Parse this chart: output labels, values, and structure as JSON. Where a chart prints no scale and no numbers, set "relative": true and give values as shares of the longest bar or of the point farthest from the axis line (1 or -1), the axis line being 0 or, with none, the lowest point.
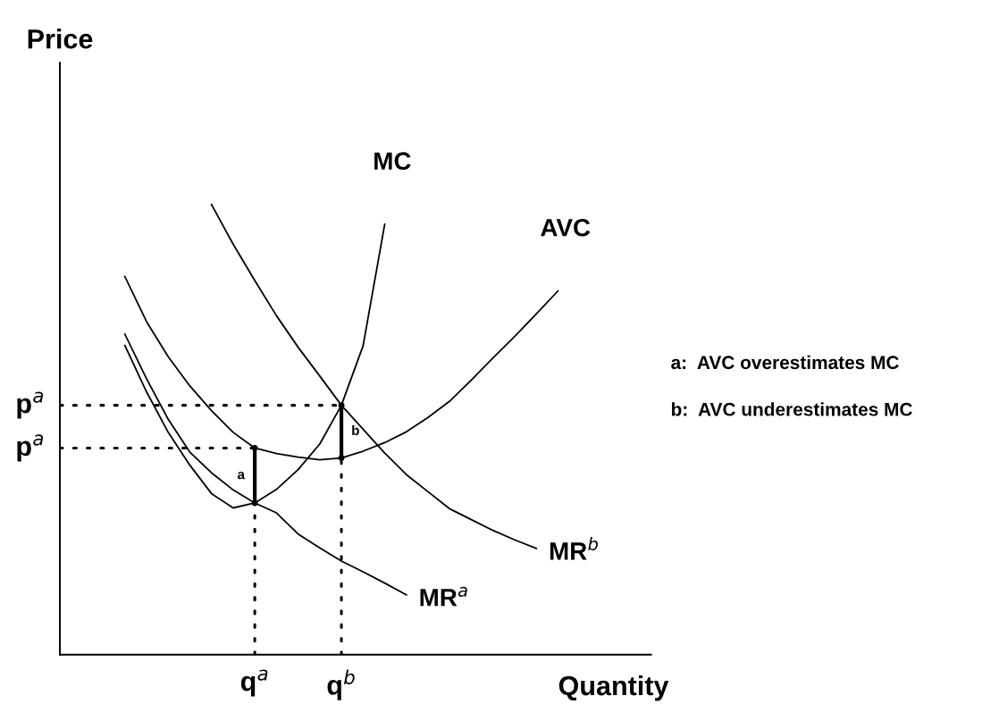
{
  "chart_data": {
    "type": "line",
    "relative": true,
    "xlabel": "Quantity",
    "marker": "none",
    "categories": [
      null,
      null,
      null,
      null,
      null,
      null,
      null,
      null,
      null,
      "q$^{a}$",
      null,
      null,
      null,
      "q$^{b}$",
      null,
      null,
      null,
      null,
      null,
      null,
      null,
      null,
      null,
      null,
      null,
      null,
      null,
      null
    ],
    "series": [
      {
        "name": "MR$^{b}$",
        "color": "#000000",
        "line_style": "solid",
        "values": [
          null,
          null,
          null,
          null,
          null,
          null,
          null,
          1.0,
          0.912,
          0.831,
          0.753,
          0.683,
          0.619,
          0.554,
          0.501,
          0.448,
          0.4,
          0.362,
          0.324,
          0.3,
          0.276,
          0.255,
          0.236,
          null,
          null,
          null,
          null,
          null
        ]
      },
      {
        "name": "MC",
        "color": "#000000",
        "line_style": "solid",
        "values": [
          null,
          null,
          null,
          0.687,
          0.584,
          0.494,
          0.421,
          0.358,
          0.326,
          0.337,
          0.367,
          0.411,
          0.468,
          0.554,
          0.686,
          0.956,
          null,
          null,
          null,
          null,
          null,
          null,
          null,
          null,
          null,
          null,
          null,
          null
        ]
      },
      {
        "name": "AVC",
        "color": "#000000",
        "line_style": "solid",
        "values": [
          null,
          null,
          null,
          0.84,
          0.74,
          0.662,
          0.597,
          0.542,
          0.494,
          0.459,
          0.447,
          0.439,
          0.433,
          0.437,
          0.452,
          0.471,
          0.495,
          0.527,
          0.563,
          0.61,
          0.659,
          0.707,
          0.757,
          0.808,
          null,
          null,
          null,
          null
        ]
      },
      {
        "name": "MR$^{a}$",
        "color": "#000000",
        "line_style": "solid",
        "values": [
          null,
          null,
          null,
          0.712,
          0.613,
          0.523,
          0.45,
          0.404,
          0.366,
          0.337,
          0.315,
          0.268,
          0.237,
          0.208,
          0.184,
          0.159,
          0.133,
          null,
          null,
          null,
          null,
          null,
          null,
          null,
          null,
          null,
          null,
          null
        ]
      },
      {
        "name": "p$^{a}$",
        "color": "#000000",
        "line_style": "dotted",
        "values": [
          0.554,
          0.554,
          0.554,
          0.554,
          0.554,
          0.554,
          0.554,
          0.554,
          0.554,
          0.554,
          0.554,
          0.554,
          0.554,
          0.554,
          null,
          null,
          null,
          null,
          null,
          null,
          null,
          null,
          null,
          null,
          null,
          null,
          null,
          null
        ]
      },
      {
        "name": "p$^{a}$",
        "color": "#000000",
        "line_style": "dotted",
        "values": [
          0.459,
          0.459,
          0.459,
          0.459,
          0.459,
          0.459,
          0.459,
          0.459,
          0.459,
          0.459,
          null,
          null,
          null,
          null,
          null,
          null,
          null,
          null,
          null,
          null,
          null,
          null,
          null,
          null,
          null,
          null,
          null,
          null
        ]
      }
    ],
    "ref_lines": [
      {
        "axis": "x",
        "value": "q$^{a}$",
        "line_style": "dotted",
        "color": "#000000"
      },
      {
        "axis": "x",
        "value": "q$^{b}$",
        "line_style": "dotted",
        "color": "#000000"
      }
    ],
    "annotations": [
      {
        "text": "a",
        "x": "q$^{a}$",
        "y": 0.459
      },
      {
        "text": "b",
        "x": "q$^{b}$",
        "y": 0.437
      },
      "Price",
      "a:  AVC overestimates MC",
      "b:  AVC underestimates MC"
    ]
  }
}
